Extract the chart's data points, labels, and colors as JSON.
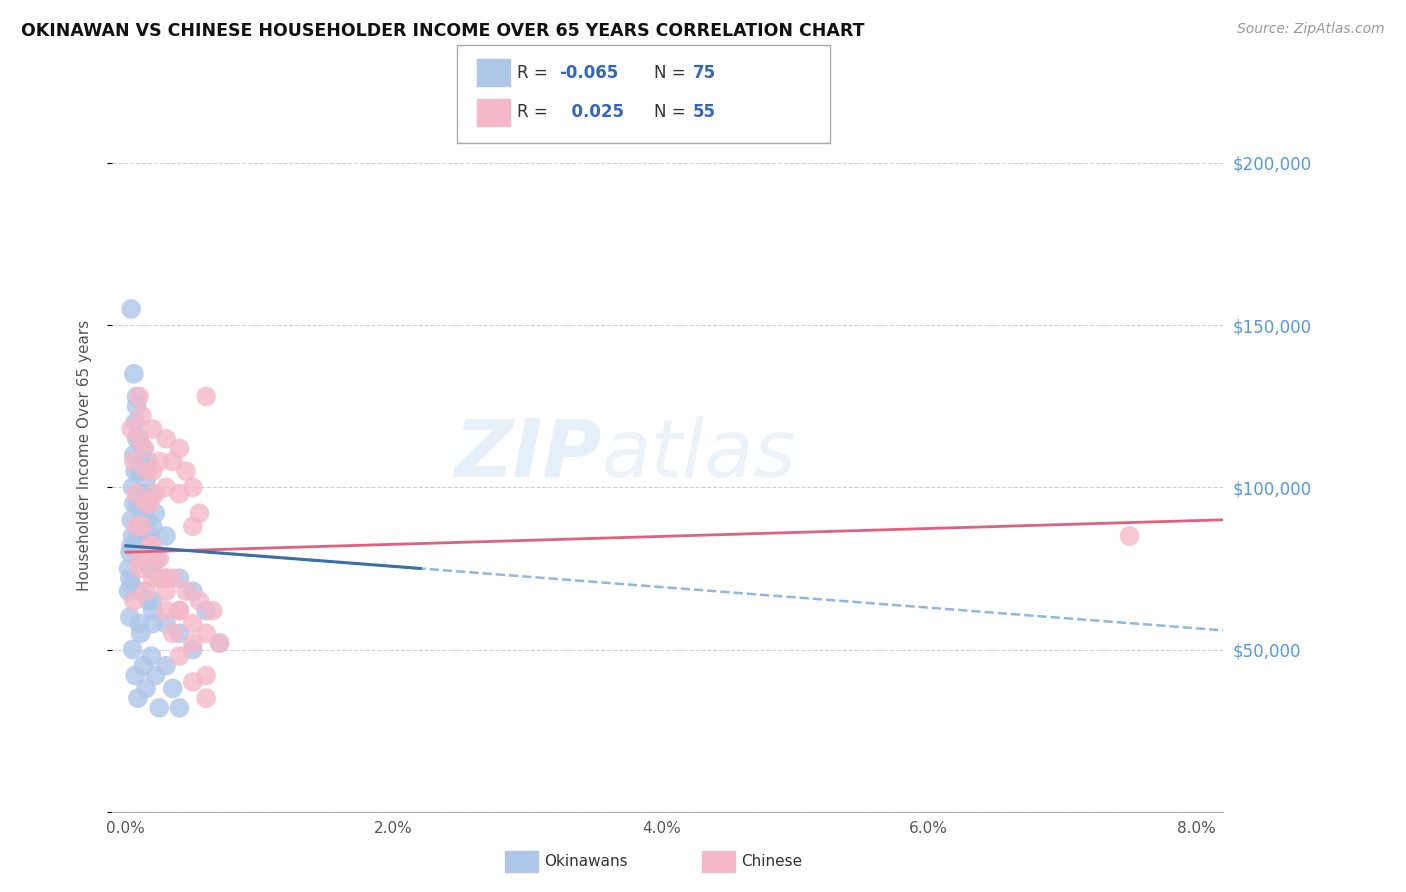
{
  "title": "OKINAWAN VS CHINESE HOUSEHOLDER INCOME OVER 65 YEARS CORRELATION CHART",
  "source": "Source: ZipAtlas.com",
  "ylabel": "Householder Income Over 65 years",
  "xlim": [
    -0.001,
    0.082
  ],
  "ylim": [
    0,
    220000
  ],
  "yticks": [
    0,
    50000,
    100000,
    150000,
    200000
  ],
  "ytick_labels": [
    "",
    "$50,000",
    "$100,000",
    "$150,000",
    "$200,000"
  ],
  "watermark": "ZIPatlas",
  "okinawan_color": "#aec6e8",
  "chinese_color": "#f4b8c8",
  "okinawan_line_color": "#3a6fa8",
  "chinese_line_color": "#e06080",
  "okinawan_dash_color": "#90b8de",
  "background_color": "#ffffff",
  "grid_color": "#cccccc",
  "title_color": "#111111",
  "right_yaxis_color": "#5599dd",
  "okinawan_x": [
    0.0002,
    0.0002,
    0.0003,
    0.0003,
    0.0004,
    0.0004,
    0.0004,
    0.0005,
    0.0005,
    0.0006,
    0.0006,
    0.0007,
    0.0007,
    0.0008,
    0.0008,
    0.0009,
    0.0009,
    0.001,
    0.001,
    0.001,
    0.001,
    0.001,
    0.001,
    0.0012,
    0.0012,
    0.0013,
    0.0013,
    0.0014,
    0.0014,
    0.0015,
    0.0015,
    0.0016,
    0.0016,
    0.0017,
    0.0018,
    0.002,
    0.002,
    0.002,
    0.002,
    0.0022,
    0.0023,
    0.003,
    0.003,
    0.003,
    0.004,
    0.004,
    0.005,
    0.005,
    0.006,
    0.007,
    0.0003,
    0.0005,
    0.0007,
    0.0009,
    0.0011,
    0.0013,
    0.0015,
    0.0017,
    0.0019,
    0.002,
    0.0022,
    0.0025,
    0.003,
    0.0035,
    0.004,
    0.0004,
    0.0006,
    0.0008,
    0.001,
    0.0012,
    0.0014,
    0.0016,
    0.0018,
    0.002
  ],
  "okinawan_y": [
    75000,
    68000,
    80000,
    72000,
    90000,
    82000,
    70000,
    100000,
    85000,
    110000,
    95000,
    120000,
    105000,
    128000,
    115000,
    95000,
    85000,
    105000,
    98000,
    88000,
    78000,
    68000,
    58000,
    108000,
    92000,
    112000,
    95000,
    98000,
    82000,
    102000,
    88000,
    108000,
    90000,
    95000,
    85000,
    98000,
    88000,
    75000,
    62000,
    92000,
    78000,
    85000,
    72000,
    58000,
    72000,
    55000,
    68000,
    50000,
    62000,
    52000,
    60000,
    50000,
    42000,
    35000,
    55000,
    45000,
    38000,
    65000,
    48000,
    58000,
    42000,
    32000,
    45000,
    38000,
    32000,
    155000,
    135000,
    125000,
    115000,
    105000,
    95000,
    85000,
    75000,
    65000
  ],
  "chinese_x": [
    0.0004,
    0.0006,
    0.0008,
    0.001,
    0.001,
    0.0012,
    0.0014,
    0.0016,
    0.0018,
    0.002,
    0.002,
    0.0022,
    0.0025,
    0.003,
    0.003,
    0.0035,
    0.004,
    0.004,
    0.0045,
    0.005,
    0.005,
    0.0055,
    0.006,
    0.0008,
    0.001,
    0.0012,
    0.0015,
    0.0018,
    0.002,
    0.0025,
    0.003,
    0.0035,
    0.004,
    0.0045,
    0.005,
    0.0055,
    0.006,
    0.0065,
    0.007,
    0.075,
    0.002,
    0.003,
    0.004,
    0.005,
    0.006,
    0.0006,
    0.001,
    0.0015,
    0.002,
    0.0025,
    0.003,
    0.0035,
    0.004,
    0.005,
    0.006
  ],
  "chinese_y": [
    118000,
    108000,
    98000,
    128000,
    115000,
    122000,
    112000,
    105000,
    95000,
    118000,
    105000,
    98000,
    108000,
    115000,
    100000,
    108000,
    112000,
    98000,
    105000,
    100000,
    88000,
    92000,
    128000,
    88000,
    78000,
    88000,
    95000,
    82000,
    72000,
    78000,
    68000,
    72000,
    62000,
    68000,
    58000,
    65000,
    55000,
    62000,
    52000,
    85000,
    82000,
    72000,
    62000,
    52000,
    42000,
    65000,
    75000,
    68000,
    78000,
    72000,
    62000,
    55000,
    48000,
    40000,
    35000
  ]
}
